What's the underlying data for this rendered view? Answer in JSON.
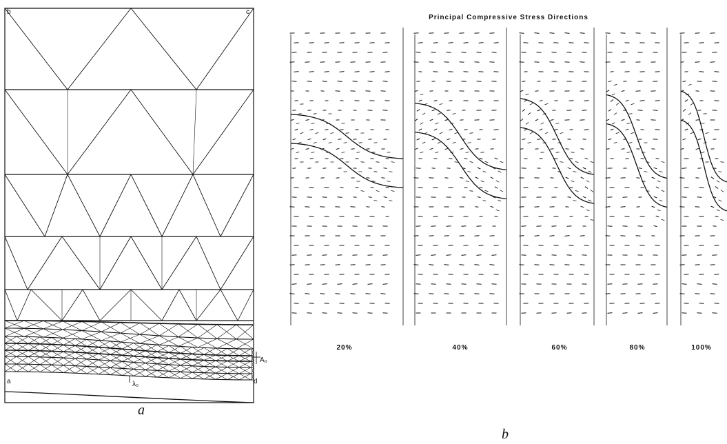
{
  "panel_a": {
    "corner_labels": {
      "top_left": "b",
      "top_right": "c",
      "bottom_left": "a",
      "bottom_right": "d"
    },
    "amplitude_label": "A₀",
    "wavelength_label": "λ₀",
    "caption": "a"
  },
  "panel_b": {
    "title": "Principal Compressive Stress Directions",
    "stages": [
      "20%",
      "40%",
      "60%",
      "80%",
      "100%"
    ],
    "caption": "b"
  },
  "colors": {
    "line": "#111111",
    "background": "#ffffff"
  }
}
